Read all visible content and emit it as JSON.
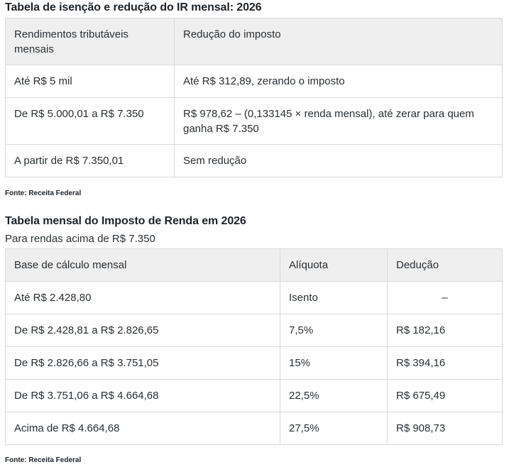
{
  "table1": {
    "title": "Tabela de isenção e redução do IR mensal: 2026",
    "headers": [
      "Rendimentos tributáveis mensais",
      "Redução do imposto"
    ],
    "rows": [
      [
        "Até R$ 5 mil",
        "Até R$ 312,89, zerando o imposto"
      ],
      [
        "De R$ 5.000,01 a R$ 7.350",
        "R$ 978,62 – (0,133145 × renda mensal), até zerar para quem ganha R$ 7.350"
      ],
      [
        "A partir de R$ 7.350,01",
        "Sem redução"
      ]
    ],
    "source": "Fonte: Receita Federal"
  },
  "table2": {
    "title": "Tabela mensal do Imposto de Renda em 2026",
    "subtitle": "Para rendas acima de R$ 7.350",
    "headers": [
      "Base de cálculo mensal",
      "Alíquota",
      "Dedução"
    ],
    "rows": [
      [
        "Até R$ 2.428,80",
        "Isento",
        "–"
      ],
      [
        "De R$ 2.428,81 a R$ 2.826,65",
        "7,5%",
        "R$ 182,16"
      ],
      [
        "De R$ 2.826,66 a R$ 3.751,05",
        "15%",
        "R$ 394,16"
      ],
      [
        "De R$ 3.751,06 a R$ 4.664,68",
        "22,5%",
        "R$ 675,49"
      ],
      [
        "Acima de R$ 4.664,68",
        "27,5%",
        "R$ 908,73"
      ]
    ],
    "source": "Fonte: Receita Federal"
  }
}
